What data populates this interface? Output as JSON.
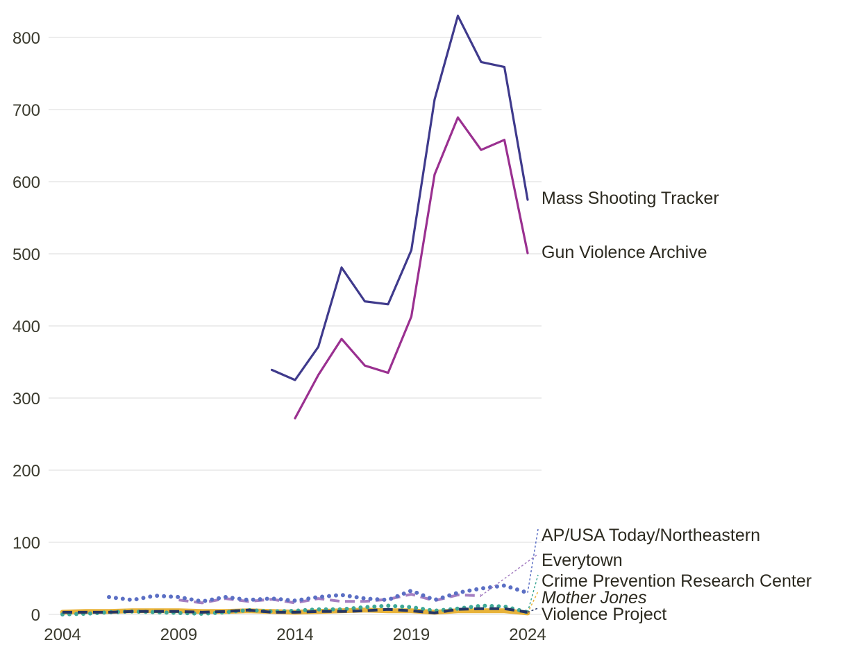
{
  "chart_data": {
    "type": "line",
    "title": "",
    "xlabel": "",
    "ylabel": "",
    "xlim": [
      2004,
      2024
    ],
    "ylim": [
      0,
      830
    ],
    "x_ticks": [
      "2004",
      "2009",
      "2014",
      "2019",
      "2024"
    ],
    "y_ticks": [
      "0",
      "100",
      "200",
      "300",
      "400",
      "500",
      "600",
      "700",
      "800"
    ],
    "grid": true,
    "legend": "direct labels at right end of lines",
    "series": [
      {
        "name": "Mass Shooting Tracker",
        "color": "#3f3a8c",
        "dash": "solid",
        "points": [
          [
            2013,
            339
          ],
          [
            2014,
            325
          ],
          [
            2015,
            371
          ],
          [
            2016,
            481
          ],
          [
            2017,
            434
          ],
          [
            2018,
            430
          ],
          [
            2019,
            505
          ],
          [
            2020,
            714
          ],
          [
            2021,
            830
          ],
          [
            2022,
            766
          ],
          [
            2023,
            759
          ],
          [
            2024,
            575
          ]
        ]
      },
      {
        "name": "Gun Violence Archive",
        "color": "#9a3090",
        "dash": "solid",
        "points": [
          [
            2014,
            272
          ],
          [
            2015,
            332
          ],
          [
            2016,
            382
          ],
          [
            2017,
            345
          ],
          [
            2018,
            335
          ],
          [
            2019,
            413
          ],
          [
            2020,
            610
          ],
          [
            2021,
            689
          ],
          [
            2022,
            644
          ],
          [
            2023,
            658
          ],
          [
            2024,
            501
          ]
        ]
      },
      {
        "name": "AP/USA Today/Northeastern",
        "color": "#5b6fc4",
        "dash": "dotted",
        "points": [
          [
            2006,
            24
          ],
          [
            2007,
            20
          ],
          [
            2008,
            26
          ],
          [
            2009,
            24
          ],
          [
            2010,
            18
          ],
          [
            2011,
            24
          ],
          [
            2012,
            20
          ],
          [
            2013,
            22
          ],
          [
            2014,
            19
          ],
          [
            2015,
            24
          ],
          [
            2016,
            27
          ],
          [
            2017,
            22
          ],
          [
            2018,
            20
          ],
          [
            2019,
            33
          ],
          [
            2020,
            20
          ],
          [
            2021,
            30
          ],
          [
            2022,
            36
          ],
          [
            2023,
            40
          ],
          [
            2024,
            30
          ]
        ]
      },
      {
        "name": "Everytown",
        "color": "#a57fc2",
        "dash": "dashed",
        "points": [
          [
            2009,
            20
          ],
          [
            2010,
            16
          ],
          [
            2011,
            22
          ],
          [
            2012,
            18
          ],
          [
            2013,
            21
          ],
          [
            2014,
            16
          ],
          [
            2015,
            22
          ],
          [
            2016,
            18
          ],
          [
            2017,
            18
          ],
          [
            2018,
            21
          ],
          [
            2019,
            28
          ],
          [
            2020,
            19
          ],
          [
            2021,
            27
          ],
          [
            2022,
            26
          ]
        ]
      },
      {
        "name": "Crime Prevention Research Center",
        "color": "#3fa896",
        "dash": "dotted",
        "points": [
          [
            2004,
            0
          ],
          [
            2005,
            1
          ],
          [
            2006,
            3
          ],
          [
            2007,
            4
          ],
          [
            2008,
            3
          ],
          [
            2009,
            2
          ],
          [
            2010,
            1
          ],
          [
            2011,
            3
          ],
          [
            2012,
            6
          ],
          [
            2013,
            4
          ],
          [
            2014,
            5
          ],
          [
            2015,
            7
          ],
          [
            2016,
            7
          ],
          [
            2017,
            10
          ],
          [
            2018,
            12
          ],
          [
            2019,
            10
          ],
          [
            2020,
            5
          ],
          [
            2021,
            8
          ],
          [
            2022,
            12
          ],
          [
            2023,
            11
          ],
          [
            2024,
            3
          ]
        ]
      },
      {
        "name": "Mother Jones",
        "color": "#e8b33a",
        "dash": "solid-thick",
        "points": [
          [
            2004,
            3
          ],
          [
            2005,
            4
          ],
          [
            2006,
            4
          ],
          [
            2007,
            5
          ],
          [
            2008,
            5
          ],
          [
            2009,
            5
          ],
          [
            2010,
            4
          ],
          [
            2011,
            4
          ],
          [
            2012,
            5
          ],
          [
            2013,
            4
          ],
          [
            2014,
            3
          ],
          [
            2015,
            4
          ],
          [
            2016,
            5
          ],
          [
            2017,
            6
          ],
          [
            2018,
            5
          ],
          [
            2019,
            5
          ],
          [
            2020,
            3
          ],
          [
            2021,
            5
          ],
          [
            2022,
            5
          ],
          [
            2023,
            5
          ],
          [
            2024,
            2
          ]
        ]
      },
      {
        "name": "Violence Project",
        "color": "#253665",
        "dash": "dashed",
        "points": [
          [
            2004,
            3
          ],
          [
            2005,
            3
          ],
          [
            2006,
            3
          ],
          [
            2007,
            4
          ],
          [
            2008,
            4
          ],
          [
            2009,
            4
          ],
          [
            2010,
            3
          ],
          [
            2011,
            4
          ],
          [
            2012,
            6
          ],
          [
            2013,
            3
          ],
          [
            2014,
            3
          ],
          [
            2015,
            4
          ],
          [
            2016,
            4
          ],
          [
            2017,
            5
          ],
          [
            2018,
            7
          ],
          [
            2019,
            5
          ],
          [
            2020,
            2
          ],
          [
            2021,
            7
          ],
          [
            2022,
            8
          ],
          [
            2023,
            8
          ],
          [
            2024,
            3
          ]
        ]
      }
    ],
    "series_labels": [
      {
        "text": "Mass Shooting Tracker",
        "italic": false
      },
      {
        "text": "Gun Violence Archive",
        "italic": false
      },
      {
        "text": "AP/USA Today/Northeastern",
        "italic": false
      },
      {
        "text": "Everytown",
        "italic": false
      },
      {
        "text": "Crime Prevention Research Center",
        "italic": false
      },
      {
        "text": "Mother Jones",
        "italic": true
      },
      {
        "text": "Violence Project",
        "italic": false
      }
    ]
  }
}
